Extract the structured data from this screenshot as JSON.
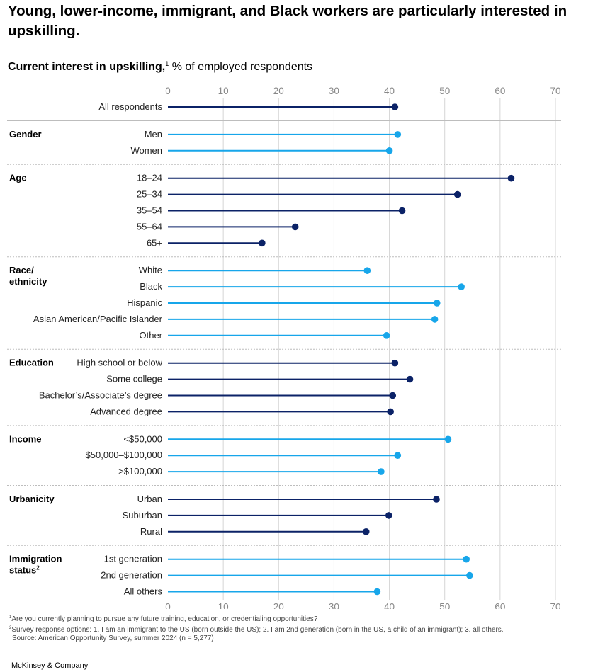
{
  "title": "Young, lower-income, immigrant, and Black workers are particularly interested in upskilling.",
  "subtitle_bold": "Current interest in upskilling,",
  "subtitle_sup": "1",
  "subtitle_rest": " % of employed respondents",
  "colors": {
    "dark": "#0b2267",
    "light": "#17a6ea",
    "grid": "#d5d5d5",
    "sep": "#bdbdbd",
    "text": "#222222"
  },
  "footnotes": {
    "f1_mark": "1",
    "f1_text": "Are you currently planning to pursue any future training, education, or credentialing opportunities?",
    "f2_mark": "2",
    "f2_text": "Survey response options: 1. I am an immigrant to the US (born outside the US); 2. I am 2nd generation (born in the US, a child of an immigrant); 3. all others.",
    "source": "Source: American Opportunity Survey, summer 2024 (n = 5,277)"
  },
  "brand": "McKinsey & Company",
  "chart_data": {
    "type": "lollipop",
    "x_range": [
      0,
      70
    ],
    "x_ticks": [
      "0",
      "10",
      "20",
      "30",
      "40",
      "50",
      "60",
      "70"
    ],
    "x_tick_values": [
      0,
      10,
      20,
      30,
      40,
      50,
      60,
      70
    ],
    "groups": [
      {
        "label": "",
        "color": "dark",
        "items": [
          {
            "label": "All respondents",
            "value": 41
          }
        ]
      },
      {
        "label": "Gender",
        "color": "light",
        "items": [
          {
            "label": "Men",
            "value": 41.5
          },
          {
            "label": "Women",
            "value": 40
          }
        ]
      },
      {
        "label": "Age",
        "color": "dark",
        "items": [
          {
            "label": "18–24",
            "value": 62
          },
          {
            "label": "25–34",
            "value": 52.3
          },
          {
            "label": "35–54",
            "value": 42.3
          },
          {
            "label": "55–64",
            "value": 23
          },
          {
            "label": "65+",
            "value": 17
          }
        ]
      },
      {
        "label": "Race/ ethnicity",
        "label_lines": [
          "Race/",
          "ethnicity"
        ],
        "color": "light",
        "items": [
          {
            "label": "White",
            "value": 36
          },
          {
            "label": "Black",
            "value": 53
          },
          {
            "label": "Hispanic",
            "value": 48.6
          },
          {
            "label": "Asian American/Pacific Islander",
            "value": 48.2
          },
          {
            "label": "Other",
            "value": 39.5
          }
        ]
      },
      {
        "label": "Education",
        "color": "dark",
        "items": [
          {
            "label": "High school or below",
            "value": 41
          },
          {
            "label": "Some college",
            "value": 43.7
          },
          {
            "label": "Bachelor’s/Associate’s degree",
            "value": 40.6
          },
          {
            "label": "Advanced degree",
            "value": 40.2
          }
        ]
      },
      {
        "label": "Income",
        "color": "light",
        "items": [
          {
            "label": "<$50,000",
            "value": 50.6
          },
          {
            "label": "$50,000–$100,000",
            "value": 41.5
          },
          {
            "label": ">$100,000",
            "value": 38.5
          }
        ]
      },
      {
        "label": "Urbanicity",
        "color": "dark",
        "items": [
          {
            "label": "Urban",
            "value": 48.5
          },
          {
            "label": "Suburban",
            "value": 39.9
          },
          {
            "label": "Rural",
            "value": 35.8
          }
        ]
      },
      {
        "label": "Immigration status",
        "label_lines": [
          "Immigration",
          "status"
        ],
        "label_sup": "2",
        "color": "light",
        "items": [
          {
            "label": "1st generation",
            "value": 53.9
          },
          {
            "label": "2nd generation",
            "value": 54.5
          },
          {
            "label": "All others",
            "value": 37.8
          }
        ]
      }
    ]
  }
}
